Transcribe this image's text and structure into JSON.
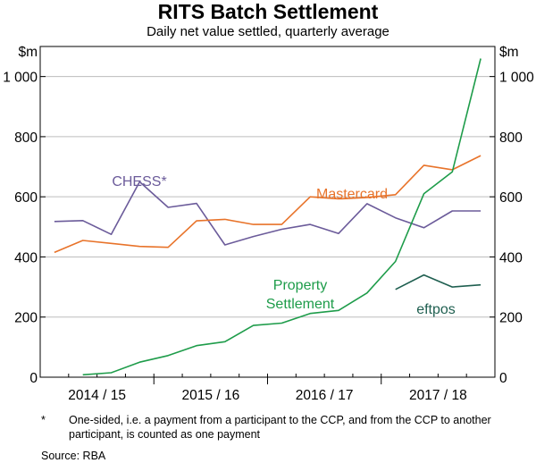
{
  "chart_data": {
    "type": "line",
    "title": "RITS Batch Settlement",
    "subtitle": "Daily net value settled, quarterly average",
    "left_unit": "$m",
    "right_unit": "$m",
    "ylim": [
      0,
      1100
    ],
    "yticks": [
      0,
      200,
      400,
      600,
      800,
      1000
    ],
    "ytick_labels": [
      "0",
      "200",
      "400",
      "600",
      "800",
      "1 000"
    ],
    "x_range": [
      0,
      16
    ],
    "x_categories": [
      {
        "label": "2014 / 15",
        "center": 2
      },
      {
        "label": "2015 / 16",
        "center": 6
      },
      {
        "label": "2016 / 17",
        "center": 10
      },
      {
        "label": "2017 / 18",
        "center": 14
      }
    ],
    "year_boundaries": [
      4,
      8,
      12
    ],
    "series": [
      {
        "name": "CHESS*",
        "label_lines": [
          "CHESS*"
        ],
        "color": "#6b5b9a",
        "x": [
          0.5,
          1.5,
          2.5,
          3.5,
          4.5,
          5.5,
          6.5,
          7.5,
          8.5,
          9.5,
          10.5,
          11.5,
          12.5,
          13.5,
          14.5,
          15.5
        ],
        "values": [
          518,
          521,
          475,
          650,
          565,
          578,
          440,
          468,
          492,
          508,
          478,
          577,
          530,
          497,
          553,
          553
        ]
      },
      {
        "name": "Mastercard",
        "label_lines": [
          "Mastercard"
        ],
        "color": "#e8732a",
        "x": [
          0.5,
          1.5,
          2.5,
          3.5,
          4.5,
          5.5,
          6.5,
          7.5,
          8.5,
          9.5,
          10.5,
          11.5,
          12.5,
          13.5,
          14.5,
          15.5
        ],
        "values": [
          415,
          455,
          445,
          435,
          432,
          520,
          525,
          508,
          508,
          600,
          593,
          598,
          607,
          705,
          690,
          737
        ]
      },
      {
        "name": "Property Settlement",
        "label_lines": [
          "Property",
          "Settlement"
        ],
        "color": "#1e9c4a",
        "x": [
          1.5,
          2.5,
          3.5,
          4.5,
          5.5,
          6.5,
          7.5,
          8.5,
          9.5,
          10.5,
          11.5,
          12.5,
          13.5,
          14.5,
          15.5
        ],
        "values": [
          8,
          15,
          50,
          72,
          105,
          118,
          172,
          180,
          212,
          222,
          280,
          385,
          610,
          683,
          1060
        ]
      },
      {
        "name": "eftpos",
        "label_lines": [
          "eftpos"
        ],
        "color": "#1f5f50",
        "x": [
          12.5,
          13.5,
          14.5,
          15.5
        ],
        "values": [
          292,
          340,
          300,
          307
        ]
      }
    ],
    "footnote_marker": "*",
    "footnote": "One-sided, i.e. a payment from a participant to the CCP, and from the CCP to another participant, is counted as one payment",
    "source": "Source:   RBA"
  }
}
